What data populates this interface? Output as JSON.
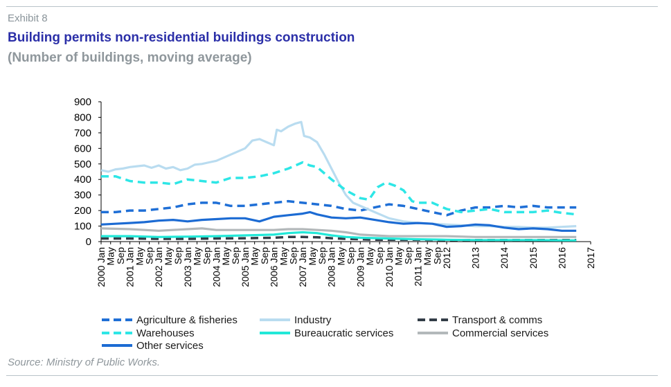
{
  "header": {
    "exhibit": "Exhibit 8",
    "title": "Building permits non-residential buildings construction",
    "subtitle": "(Number of buildings, moving average)"
  },
  "footer": {
    "source": "Source: Ministry of Public Works."
  },
  "colors": {
    "agri": "#1f6fd6",
    "industry": "#b9dcf0",
    "transport": "#333d47",
    "warehouses": "#2ee6e6",
    "bureaucratic": "#22e8d8",
    "commercial": "#b3b8ba",
    "other": "#1c6bd3"
  },
  "chart_data": {
    "type": "line",
    "ylim": [
      0,
      900
    ],
    "yticks": [
      0,
      100,
      200,
      300,
      400,
      500,
      600,
      700,
      800,
      900
    ],
    "x_tick_labels": [
      {
        "t": 2000.0,
        "label": "2000 Jan"
      },
      {
        "t": 2000.33,
        "label": "May"
      },
      {
        "t": 2000.67,
        "label": "Sep"
      },
      {
        "t": 2001.0,
        "label": "2001 Jan"
      },
      {
        "t": 2001.33,
        "label": "May"
      },
      {
        "t": 2001.67,
        "label": "Sep"
      },
      {
        "t": 2002.0,
        "label": "2002 Jan"
      },
      {
        "t": 2002.33,
        "label": "May"
      },
      {
        "t": 2002.67,
        "label": "Sep"
      },
      {
        "t": 2003.0,
        "label": "2003 Jan"
      },
      {
        "t": 2003.33,
        "label": "May"
      },
      {
        "t": 2003.67,
        "label": "Sep"
      },
      {
        "t": 2004.0,
        "label": "2004 Jan"
      },
      {
        "t": 2004.33,
        "label": "May"
      },
      {
        "t": 2004.67,
        "label": "Sep"
      },
      {
        "t": 2005.0,
        "label": "2005 Jan"
      },
      {
        "t": 2005.33,
        "label": "May"
      },
      {
        "t": 2005.67,
        "label": "Sep"
      },
      {
        "t": 2006.0,
        "label": "2006 Jan"
      },
      {
        "t": 2006.33,
        "label": "May"
      },
      {
        "t": 2006.67,
        "label": "Sep"
      },
      {
        "t": 2007.0,
        "label": "2007 Jan"
      },
      {
        "t": 2007.33,
        "label": "May"
      },
      {
        "t": 2007.67,
        "label": "Sep"
      },
      {
        "t": 2008.0,
        "label": "2008 Jan"
      },
      {
        "t": 2008.33,
        "label": "May"
      },
      {
        "t": 2008.67,
        "label": "Sep"
      },
      {
        "t": 2009.0,
        "label": "2009 Jan"
      },
      {
        "t": 2009.33,
        "label": "May"
      },
      {
        "t": 2009.67,
        "label": "Sep"
      },
      {
        "t": 2010.0,
        "label": "2010 Jan"
      },
      {
        "t": 2010.33,
        "label": "May"
      },
      {
        "t": 2010.67,
        "label": "Sep"
      },
      {
        "t": 2011.0,
        "label": "2011 Jan"
      },
      {
        "t": 2011.33,
        "label": "May"
      },
      {
        "t": 2011.67,
        "label": "Sep"
      },
      {
        "t": 2012.0,
        "label": "2012"
      },
      {
        "t": 2013.0,
        "label": "2013"
      },
      {
        "t": 2014.0,
        "label": "2014"
      },
      {
        "t": 2015.0,
        "label": "2015"
      },
      {
        "t": 2016.0,
        "label": "2016"
      },
      {
        "t": 2017.0,
        "label": "2017"
      }
    ],
    "series": [
      {
        "key": "agri",
        "name": "Agriculture & fisheries",
        "style": "dash",
        "x": [
          2000.0,
          2000.5,
          2001.0,
          2001.5,
          2002.0,
          2002.5,
          2003.0,
          2003.5,
          2004.0,
          2004.5,
          2005.0,
          2005.5,
          2006.0,
          2006.5,
          2007.0,
          2007.5,
          2008.0,
          2008.5,
          2009.0,
          2009.5,
          2010.0,
          2010.5,
          2011.0,
          2011.5,
          2012.0,
          2012.5,
          2013.0,
          2013.5,
          2014.0,
          2014.5,
          2015.0,
          2015.5,
          2016.0,
          2016.5
        ],
        "y": [
          190,
          190,
          200,
          200,
          210,
          220,
          240,
          250,
          250,
          230,
          230,
          240,
          250,
          260,
          250,
          240,
          230,
          210,
          200,
          220,
          240,
          230,
          210,
          190,
          170,
          200,
          220,
          220,
          230,
          220,
          230,
          220,
          220,
          220
        ]
      },
      {
        "key": "industry",
        "name": "Industry",
        "style": "solid",
        "x": [
          2000.0,
          2000.25,
          2000.5,
          2000.75,
          2001.0,
          2001.25,
          2001.5,
          2001.75,
          2002.0,
          2002.25,
          2002.5,
          2002.75,
          2003.0,
          2003.25,
          2003.5,
          2003.75,
          2004.0,
          2004.25,
          2004.5,
          2004.75,
          2005.0,
          2005.25,
          2005.5,
          2005.75,
          2006.0,
          2006.1,
          2006.25,
          2006.5,
          2006.75,
          2006.95,
          2007.05,
          2007.25,
          2007.5,
          2007.75,
          2008.0,
          2008.25,
          2008.5,
          2008.75,
          2009.0,
          2009.25,
          2009.5,
          2009.75,
          2010.0,
          2010.25,
          2010.5,
          2010.75,
          2011.0,
          2011.5,
          2012.0,
          2012.5,
          2013.0,
          2013.5,
          2014.0,
          2014.5,
          2015.0,
          2015.5,
          2016.0,
          2016.5
        ],
        "y": [
          460,
          450,
          465,
          470,
          480,
          485,
          490,
          475,
          490,
          470,
          480,
          460,
          470,
          495,
          500,
          510,
          520,
          540,
          560,
          580,
          600,
          650,
          660,
          640,
          620,
          720,
          710,
          740,
          760,
          770,
          680,
          670,
          640,
          560,
          470,
          380,
          300,
          250,
          230,
          210,
          190,
          170,
          150,
          140,
          130,
          125,
          120,
          115,
          110,
          105,
          100,
          100,
          95,
          95,
          90,
          90,
          95,
          100
        ]
      },
      {
        "key": "transport",
        "name": "Transport & comms",
        "style": "dash",
        "x": [
          2000.0,
          2001.0,
          2002.0,
          2003.0,
          2004.0,
          2005.0,
          2006.0,
          2006.5,
          2007.0,
          2007.5,
          2008.0,
          2008.5,
          2009.0,
          2009.5,
          2010.0,
          2011.0,
          2012.0,
          2013.0,
          2014.0,
          2015.0,
          2016.0,
          2016.5
        ],
        "y": [
          20,
          20,
          18,
          18,
          20,
          22,
          25,
          30,
          30,
          28,
          22,
          18,
          15,
          12,
          12,
          12,
          10,
          10,
          10,
          10,
          10,
          10
        ]
      },
      {
        "key": "warehouses",
        "name": "Warehouses",
        "style": "dash",
        "x": [
          2000.0,
          2000.5,
          2001.0,
          2001.5,
          2002.0,
          2002.5,
          2003.0,
          2003.5,
          2004.0,
          2004.5,
          2005.0,
          2005.5,
          2006.0,
          2006.5,
          2007.0,
          2007.25,
          2007.5,
          2008.0,
          2008.5,
          2009.0,
          2009.3,
          2009.6,
          2009.9,
          2010.2,
          2010.5,
          2010.8,
          2011.0,
          2011.5,
          2012.0,
          2012.5,
          2013.0,
          2013.5,
          2014.0,
          2014.5,
          2015.0,
          2015.5,
          2016.0,
          2016.5
        ],
        "y": [
          420,
          420,
          390,
          380,
          380,
          370,
          400,
          390,
          380,
          410,
          410,
          420,
          440,
          470,
          510,
          490,
          480,
          400,
          330,
          280,
          270,
          350,
          380,
          360,
          330,
          260,
          250,
          250,
          210,
          190,
          200,
          210,
          190,
          190,
          190,
          200,
          185,
          175
        ]
      },
      {
        "key": "bureaucratic",
        "name": "Bureaucratic  services",
        "style": "solid",
        "x": [
          2000.0,
          2001.0,
          2002.0,
          2003.0,
          2004.0,
          2005.0,
          2006.0,
          2006.5,
          2007.0,
          2007.5,
          2008.0,
          2008.5,
          2009.0,
          2010.0,
          2011.0,
          2012.0,
          2013.0,
          2014.0,
          2015.0,
          2016.0,
          2016.5
        ],
        "y": [
          35,
          35,
          30,
          32,
          35,
          40,
          45,
          55,
          60,
          55,
          40,
          30,
          25,
          20,
          15,
          12,
          10,
          10,
          10,
          8,
          8
        ]
      },
      {
        "key": "commercial",
        "name": "Commercial services",
        "style": "solid",
        "x": [
          2000.0,
          2001.0,
          2002.0,
          2003.0,
          2003.5,
          2004.0,
          2005.0,
          2006.0,
          2006.5,
          2007.0,
          2008.0,
          2008.5,
          2009.0,
          2009.5,
          2010.0,
          2011.0,
          2012.0,
          2013.0,
          2014.0,
          2015.0,
          2016.0,
          2016.5
        ],
        "y": [
          85,
          80,
          70,
          80,
          85,
          75,
          75,
          75,
          80,
          80,
          70,
          60,
          45,
          40,
          35,
          35,
          35,
          30,
          30,
          30,
          30,
          30
        ]
      },
      {
        "key": "other",
        "name": "Other services",
        "style": "solid",
        "x": [
          2000.0,
          2000.5,
          2001.0,
          2001.5,
          2002.0,
          2002.5,
          2003.0,
          2003.5,
          2004.0,
          2004.5,
          2005.0,
          2005.5,
          2006.0,
          2006.5,
          2007.0,
          2007.25,
          2007.5,
          2008.0,
          2008.5,
          2009.0,
          2009.5,
          2010.0,
          2010.5,
          2011.0,
          2011.5,
          2012.0,
          2012.5,
          2013.0,
          2013.5,
          2014.0,
          2014.5,
          2015.0,
          2015.5,
          2016.0,
          2016.5
        ],
        "y": [
          110,
          115,
          120,
          125,
          135,
          140,
          130,
          140,
          145,
          150,
          150,
          130,
          160,
          170,
          180,
          190,
          175,
          155,
          150,
          155,
          140,
          125,
          115,
          120,
          115,
          95,
          100,
          110,
          105,
          90,
          80,
          85,
          80,
          70,
          70
        ]
      }
    ]
  }
}
